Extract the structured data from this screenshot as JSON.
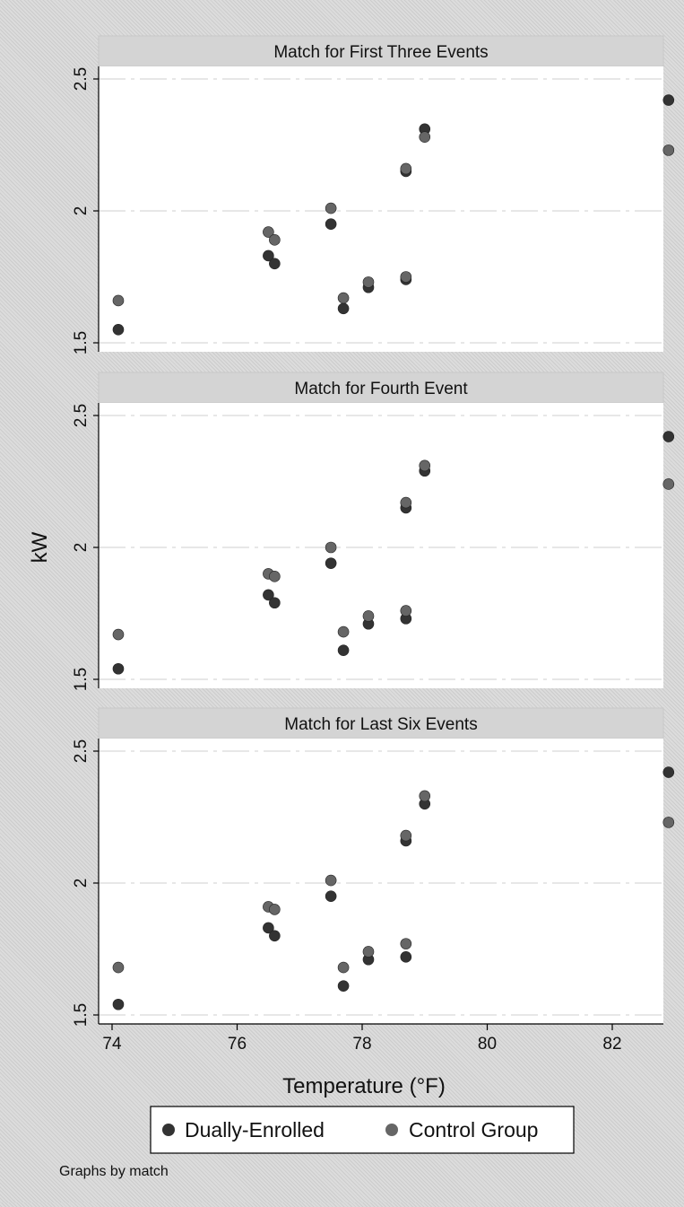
{
  "colors": {
    "dually_enrolled": "#333333",
    "control_group": "#666666",
    "plot_background": "#ffffff",
    "strip_background": "#d4d4d4",
    "gridline": "#cfcfcf",
    "axis": "#000000"
  },
  "chart_data": {
    "type": "scatter",
    "ylabel": "kW",
    "xlabel": "Temperature (°F)",
    "xlim": [
      74,
      83
    ],
    "ylim": [
      1.5,
      2.5
    ],
    "xticks": [
      74,
      76,
      78,
      80,
      82
    ],
    "yticks": [
      1.5,
      2,
      2.5
    ],
    "grid": true,
    "legend_position": "bottom",
    "legend": [
      "Dually-Enrolled",
      "Control Group"
    ],
    "note": "Graphs by match",
    "panels": [
      {
        "title": "Match for First Three Events",
        "series": [
          {
            "name": "Dually-Enrolled",
            "points": [
              [
                74.1,
                1.55
              ],
              [
                76.5,
                1.83
              ],
              [
                76.6,
                1.8
              ],
              [
                77.5,
                1.95
              ],
              [
                77.7,
                1.63
              ],
              [
                78.1,
                1.71
              ],
              [
                78.7,
                1.74
              ],
              [
                78.7,
                2.15
              ],
              [
                79.0,
                2.31
              ],
              [
                82.9,
                2.42
              ]
            ]
          },
          {
            "name": "Control Group",
            "points": [
              [
                74.1,
                1.66
              ],
              [
                76.5,
                1.92
              ],
              [
                76.6,
                1.89
              ],
              [
                77.5,
                2.01
              ],
              [
                77.7,
                1.67
              ],
              [
                78.1,
                1.73
              ],
              [
                78.7,
                1.75
              ],
              [
                78.7,
                2.16
              ],
              [
                79.0,
                2.28
              ],
              [
                82.9,
                2.23
              ]
            ]
          }
        ]
      },
      {
        "title": "Match for Fourth Event",
        "series": [
          {
            "name": "Dually-Enrolled",
            "points": [
              [
                74.1,
                1.54
              ],
              [
                76.5,
                1.82
              ],
              [
                76.6,
                1.79
              ],
              [
                77.5,
                1.94
              ],
              [
                77.7,
                1.61
              ],
              [
                78.1,
                1.71
              ],
              [
                78.7,
                1.73
              ],
              [
                78.7,
                2.15
              ],
              [
                79.0,
                2.29
              ],
              [
                82.9,
                2.42
              ]
            ]
          },
          {
            "name": "Control Group",
            "points": [
              [
                74.1,
                1.67
              ],
              [
                76.5,
                1.9
              ],
              [
                76.6,
                1.89
              ],
              [
                77.5,
                2.0
              ],
              [
                77.7,
                1.68
              ],
              [
                78.1,
                1.74
              ],
              [
                78.7,
                1.76
              ],
              [
                78.7,
                2.17
              ],
              [
                79.0,
                2.31
              ],
              [
                82.9,
                2.24
              ]
            ]
          }
        ]
      },
      {
        "title": "Match for Last Six Events",
        "series": [
          {
            "name": "Dually-Enrolled",
            "points": [
              [
                74.1,
                1.54
              ],
              [
                76.5,
                1.83
              ],
              [
                76.6,
                1.8
              ],
              [
                77.5,
                1.95
              ],
              [
                77.7,
                1.61
              ],
              [
                78.1,
                1.71
              ],
              [
                78.7,
                1.72
              ],
              [
                78.7,
                2.16
              ],
              [
                79.0,
                2.3
              ],
              [
                82.9,
                2.42
              ]
            ]
          },
          {
            "name": "Control Group",
            "points": [
              [
                74.1,
                1.68
              ],
              [
                76.5,
                1.91
              ],
              [
                76.6,
                1.9
              ],
              [
                77.5,
                2.01
              ],
              [
                77.7,
                1.68
              ],
              [
                78.1,
                1.74
              ],
              [
                78.7,
                1.77
              ],
              [
                78.7,
                2.18
              ],
              [
                79.0,
                2.33
              ],
              [
                82.9,
                2.23
              ]
            ]
          }
        ]
      }
    ]
  }
}
